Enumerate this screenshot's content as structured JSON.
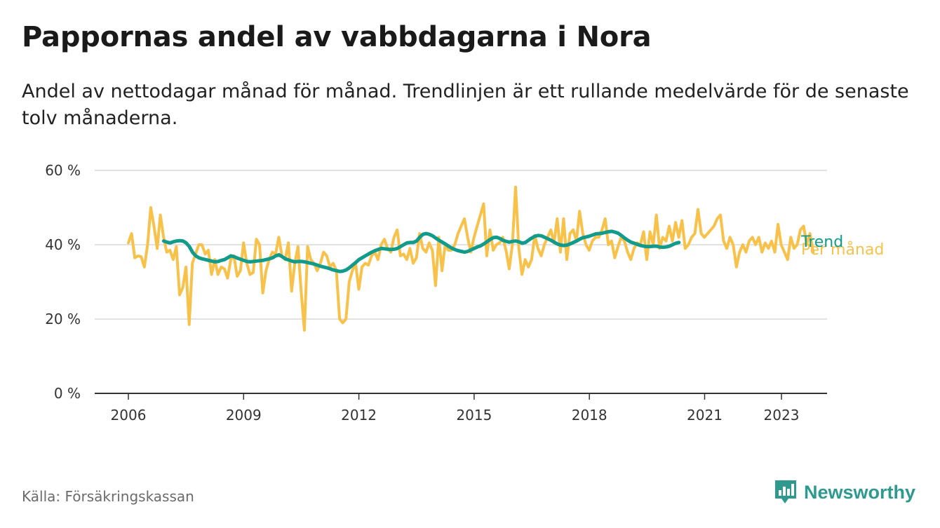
{
  "title": "Pappornas andel av vabbdagarna i Nora",
  "subtitle": "Andel av nettodagar månad för månad. Trendlinjen är ett rullande medelvärde för de senaste tolv månaderna.",
  "source": "Källa: Försäkringskassan",
  "brand": {
    "name": "Newsworthy",
    "icon": "newsworthy-logo-icon",
    "color": "#2d9a8d"
  },
  "chart_data": {
    "type": "line",
    "title": "Pappornas andel av vabbdagarna i Nora",
    "ylim": [
      0,
      60
    ],
    "xlim": [
      2006,
      2023.7
    ],
    "y_ticks": [
      {
        "value": 0,
        "label": "0 %"
      },
      {
        "value": 20,
        "label": "20 %"
      },
      {
        "value": 40,
        "label": "40 %"
      },
      {
        "value": 60,
        "label": "60 %"
      }
    ],
    "x_ticks": [
      {
        "value": 2006,
        "label": "2006"
      },
      {
        "value": 2009,
        "label": "2009"
      },
      {
        "value": 2012,
        "label": "2012"
      },
      {
        "value": 2015,
        "label": "2015"
      },
      {
        "value": 2018,
        "label": "2018"
      },
      {
        "value": 2021,
        "label": "2021"
      },
      {
        "value": 2023,
        "label": "2023"
      }
    ],
    "grid": true,
    "legend": "direct labels at right end of lines",
    "series": [
      {
        "name": "Per månad",
        "color": "#f8c14a",
        "x_start": 2006.0,
        "step": 0.0833,
        "values": [
          40.5,
          43,
          36.5,
          37,
          36.8,
          34,
          40,
          50,
          45,
          39,
          48,
          42,
          38,
          38.5,
          36,
          39.5,
          26.5,
          28.5,
          34,
          18.5,
          35,
          37.5,
          40,
          40,
          37.5,
          38.5,
          32,
          36,
          32,
          34,
          33.5,
          31,
          36,
          37,
          31.5,
          33,
          40.5,
          35,
          32,
          32.5,
          41.5,
          40,
          27,
          33,
          36,
          38,
          37.5,
          42,
          37,
          36,
          40.5,
          27.5,
          35,
          39.5,
          27.5,
          17,
          39.5,
          36,
          35,
          33,
          35,
          38,
          37,
          34,
          35,
          33,
          20,
          19,
          20,
          30,
          33,
          35,
          28,
          34,
          35,
          34.5,
          37,
          38,
          36,
          40,
          41.5,
          39,
          38,
          42,
          44,
          37,
          37.5,
          36,
          39,
          35,
          36.5,
          43,
          39,
          38,
          40.5,
          38.5,
          29,
          42,
          33,
          40,
          38.5,
          38.5,
          40,
          43,
          45,
          47,
          42,
          38,
          42,
          45,
          48,
          51,
          37,
          44,
          38.5,
          40,
          40.5,
          42,
          38.5,
          33.5,
          40,
          55.5,
          39,
          32,
          36,
          34,
          36,
          42.5,
          39,
          37,
          40,
          42,
          44,
          40.5,
          47,
          38,
          47,
          36,
          43,
          44,
          41,
          49,
          43,
          40,
          38.5,
          41,
          42,
          42,
          44,
          47,
          40,
          41,
          36.5,
          39.5,
          42,
          41,
          38,
          36,
          39,
          40.5,
          40,
          43.5,
          36,
          43.5,
          40,
          48,
          39,
          42,
          41,
          45,
          41,
          46,
          42,
          46.5,
          39,
          40,
          42,
          43,
          49.5,
          43,
          42,
          43,
          44,
          45,
          47,
          48,
          41,
          39,
          42,
          40,
          34,
          38,
          40,
          38,
          41,
          42,
          40,
          42,
          38,
          40.5,
          39,
          41,
          38,
          45.5,
          40,
          38,
          36,
          42,
          39,
          40,
          44,
          45,
          40,
          43,
          38
        ],
        "end_label": "Per månad"
      },
      {
        "name": "Trend",
        "color": "#129b8b",
        "x_start": 2006.92,
        "step": 0.0833,
        "values": [
          41,
          40.7,
          40.5,
          40.8,
          41,
          41.1,
          41,
          40.5,
          39.5,
          38,
          37,
          36.5,
          36.2,
          36,
          35.8,
          35.6,
          35.4,
          35.5,
          35.8,
          36,
          36.5,
          37,
          36.8,
          36.4,
          36.1,
          35.8,
          35.5,
          35.4,
          35.5,
          35.6,
          35.7,
          35.8,
          36,
          36.2,
          36.5,
          37,
          37.3,
          36.8,
          36.2,
          35.9,
          35.6,
          35.4,
          35.5,
          35.5,
          35.4,
          35.2,
          35,
          34.8,
          34.5,
          34.2,
          34,
          33.8,
          33.5,
          33.2,
          33,
          32.8,
          32.9,
          33.2,
          33.8,
          34.5,
          35.2,
          36,
          36.5,
          37,
          37.5,
          38,
          38.4,
          38.7,
          39,
          38.9,
          38.8,
          38.7,
          38.8,
          39,
          39.5,
          40,
          40.5,
          40.6,
          40.6,
          41,
          42,
          42.8,
          43,
          42.8,
          42.4,
          41.8,
          41.2,
          40.7,
          40.2,
          39.6,
          39.1,
          38.7,
          38.4,
          38.2,
          38,
          38.2,
          38.6,
          39,
          39.4,
          39.7,
          40.2,
          40.8,
          41.4,
          41.9,
          42,
          41.7,
          41.2,
          40.9,
          40.7,
          40.9,
          41,
          40.8,
          40.4,
          40.6,
          41.2,
          41.8,
          42.3,
          42.5,
          42.4,
          42,
          41.6,
          41.2,
          40.7,
          40.2,
          39.9,
          39.8,
          39.9,
          40.2,
          40.6,
          41,
          41.5,
          41.9,
          42.1,
          42.3,
          42.6,
          42.9,
          43,
          43.1,
          43.3,
          43.5,
          43.6,
          43.4,
          43.1,
          42.5,
          41.8,
          41.2,
          40.7,
          40.4,
          40.1,
          39.8,
          39.6,
          39.5,
          39.5,
          39.6,
          39.6,
          39.4,
          39.3,
          39.4,
          39.6,
          40,
          40.4,
          40.6
        ],
        "end_label": "Trend"
      }
    ]
  }
}
